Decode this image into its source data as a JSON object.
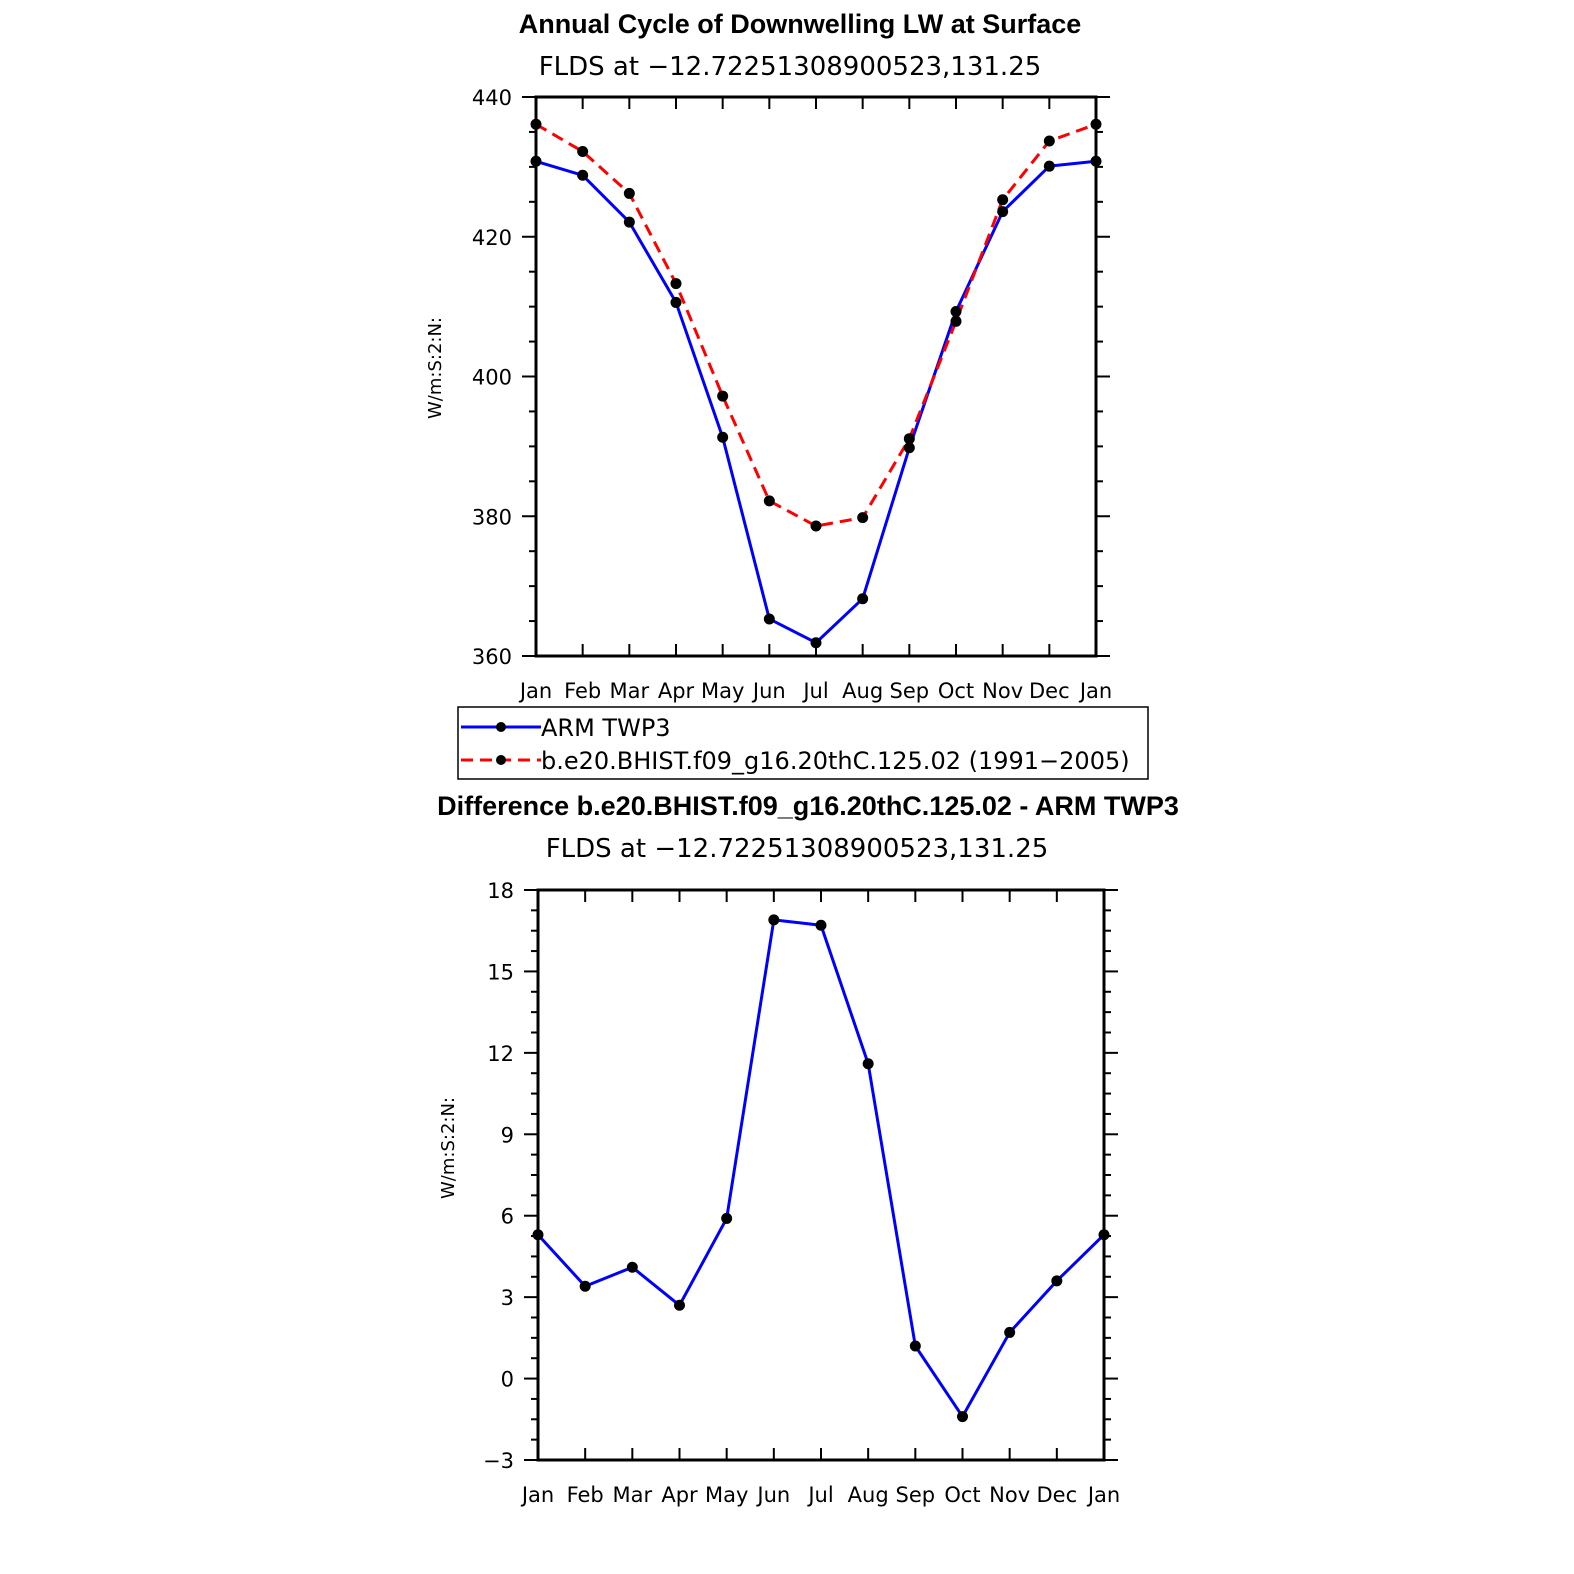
{
  "chart_data": [
    {
      "type": "line",
      "title": "Annual Cycle of Downwelling LW at Surface",
      "subtitle": "FLDS at −12.72251308900523,131.25",
      "xlabel": "",
      "ylabel": "W/m:S:2:N:",
      "categories": [
        "Jan",
        "Feb",
        "Mar",
        "Apr",
        "May",
        "Jun",
        "Jul",
        "Aug",
        "Sep",
        "Oct",
        "Nov",
        "Dec",
        "Jan"
      ],
      "ylim": [
        360,
        440
      ],
      "yticks": [
        "360",
        "380",
        "400",
        "420",
        "440"
      ],
      "grid": false,
      "legend_placement": "below",
      "series": [
        {
          "name": "ARM TWP3",
          "color": "#0000ff",
          "dash": "solid",
          "values": [
            430.8,
            428.8,
            422.1,
            410.6,
            391.3,
            365.3,
            361.9,
            368.2,
            389.8,
            409.3,
            423.6,
            430.1,
            430.8
          ]
        },
        {
          "name": "b.e20.BHIST.f09_g16.20thC.125.02 (1991−2005)",
          "color": "#ff0000",
          "dash": "dashed",
          "values": [
            436.1,
            432.2,
            426.2,
            413.3,
            397.2,
            382.2,
            378.6,
            379.8,
            391.1,
            407.9,
            425.3,
            433.7,
            436.1
          ]
        }
      ]
    },
    {
      "type": "line",
      "title": "Difference b.e20.BHIST.f09_g16.20thC.125.02 - ARM TWP3",
      "subtitle": "FLDS at −12.72251308900523,131.25",
      "xlabel": "",
      "ylabel": "W/m:S:2:N:",
      "categories": [
        "Jan",
        "Feb",
        "Mar",
        "Apr",
        "May",
        "Jun",
        "Jul",
        "Aug",
        "Sep",
        "Oct",
        "Nov",
        "Dec",
        "Jan"
      ],
      "ylim": [
        -3,
        18
      ],
      "yticks": [
        "−3",
        "0",
        "3",
        "6",
        "9",
        "12",
        "15",
        "18"
      ],
      "grid": false,
      "series": [
        {
          "color": "#0000ff",
          "dash": "solid",
          "values": [
            5.3,
            3.4,
            4.1,
            2.7,
            5.9,
            16.9,
            16.7,
            11.6,
            1.2,
            -1.4,
            1.7,
            3.6,
            5.3
          ]
        }
      ]
    }
  ]
}
